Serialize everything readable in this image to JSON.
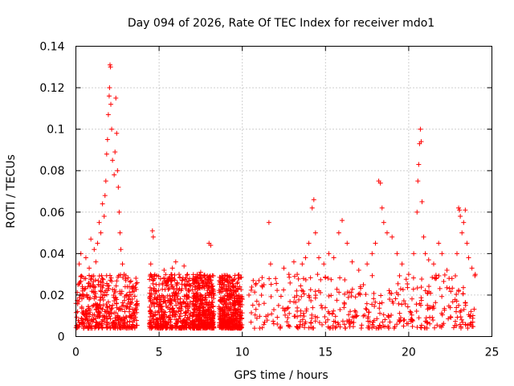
{
  "chart_data": {
    "type": "scatter",
    "title": "Day 094 of 2026, Rate Of TEC Index for receiver mdo1",
    "xlabel": "GPS time / hours",
    "ylabel": "ROTI / TECUs",
    "xlim": [
      0,
      25
    ],
    "ylim": [
      0,
      0.14
    ],
    "x_ticks": [
      0,
      5,
      10,
      15,
      20,
      25
    ],
    "x_tick_labels": [
      "0",
      "5",
      "10",
      "15",
      "20",
      "25"
    ],
    "y_ticks": [
      0,
      0.02,
      0.04,
      0.06,
      0.08,
      0.1,
      0.12,
      0.14
    ],
    "y_tick_labels": [
      "0",
      "0.02",
      "0.04",
      "0.06",
      "0.08",
      "0.1",
      "0.12",
      "0.14"
    ],
    "grid": true,
    "marker": "+",
    "marker_color": "#ff0000",
    "series": [
      {
        "name": "ROTI",
        "points": [
          [
            0.1,
            0.012
          ],
          [
            0.2,
            0.035
          ],
          [
            0.3,
            0.04
          ],
          [
            0.4,
            0.022
          ],
          [
            0.5,
            0.028
          ],
          [
            0.6,
            0.038
          ],
          [
            0.7,
            0.019
          ],
          [
            0.8,
            0.033
          ],
          [
            0.9,
            0.047
          ],
          [
            1.0,
            0.025
          ],
          [
            1.1,
            0.042
          ],
          [
            1.2,
            0.036
          ],
          [
            1.3,
            0.045
          ],
          [
            1.4,
            0.055
          ],
          [
            1.5,
            0.05
          ],
          [
            1.6,
            0.064
          ],
          [
            1.7,
            0.058
          ],
          [
            1.75,
            0.068
          ],
          [
            1.8,
            0.075
          ],
          [
            1.85,
            0.088
          ],
          [
            1.9,
            0.095
          ],
          [
            1.95,
            0.107
          ],
          [
            2.0,
            0.116
          ],
          [
            2.02,
            0.12
          ],
          [
            2.05,
            0.131
          ],
          [
            2.08,
            0.13
          ],
          [
            2.1,
            0.112
          ],
          [
            2.15,
            0.1
          ],
          [
            2.2,
            0.085
          ],
          [
            2.3,
            0.078
          ],
          [
            2.35,
            0.089
          ],
          [
            2.4,
            0.115
          ],
          [
            2.45,
            0.098
          ],
          [
            2.5,
            0.08
          ],
          [
            2.55,
            0.072
          ],
          [
            2.6,
            0.06
          ],
          [
            2.65,
            0.05
          ],
          [
            2.7,
            0.042
          ],
          [
            2.8,
            0.035
          ],
          [
            2.9,
            0.03
          ],
          [
            3.0,
            0.027
          ],
          [
            3.2,
            0.024
          ],
          [
            3.5,
            0.022
          ],
          [
            4.5,
            0.035
          ],
          [
            4.6,
            0.051
          ],
          [
            4.65,
            0.048
          ],
          [
            4.7,
            0.028
          ],
          [
            5.0,
            0.025
          ],
          [
            5.3,
            0.032
          ],
          [
            5.6,
            0.028
          ],
          [
            5.8,
            0.033
          ],
          [
            6.0,
            0.036
          ],
          [
            6.2,
            0.03
          ],
          [
            6.5,
            0.034
          ],
          [
            6.8,
            0.025
          ],
          [
            7.3,
            0.03
          ],
          [
            7.5,
            0.031
          ],
          [
            7.7,
            0.024
          ],
          [
            8.0,
            0.045
          ],
          [
            8.1,
            0.044
          ],
          [
            8.3,
            0.02
          ],
          [
            8.8,
            0.026
          ],
          [
            9.2,
            0.024
          ],
          [
            9.6,
            0.022
          ],
          [
            10.0,
            0.018
          ],
          [
            10.4,
            0.02
          ],
          [
            10.8,
            0.025
          ],
          [
            11.0,
            0.027
          ],
          [
            11.3,
            0.025
          ],
          [
            11.6,
            0.055
          ],
          [
            11.7,
            0.035
          ],
          [
            12.0,
            0.028
          ],
          [
            12.5,
            0.033
          ],
          [
            12.8,
            0.03
          ],
          [
            13.1,
            0.036
          ],
          [
            13.3,
            0.03
          ],
          [
            13.6,
            0.035
          ],
          [
            13.8,
            0.038
          ],
          [
            14.0,
            0.045
          ],
          [
            14.2,
            0.062
          ],
          [
            14.3,
            0.066
          ],
          [
            14.4,
            0.05
          ],
          [
            14.6,
            0.038
          ],
          [
            14.9,
            0.035
          ],
          [
            15.2,
            0.04
          ],
          [
            15.5,
            0.038
          ],
          [
            15.8,
            0.05
          ],
          [
            16.0,
            0.056
          ],
          [
            16.3,
            0.045
          ],
          [
            16.6,
            0.036
          ],
          [
            17.0,
            0.032
          ],
          [
            17.5,
            0.035
          ],
          [
            17.8,
            0.04
          ],
          [
            18.0,
            0.045
          ],
          [
            18.2,
            0.075
          ],
          [
            18.3,
            0.074
          ],
          [
            18.4,
            0.062
          ],
          [
            18.5,
            0.055
          ],
          [
            18.7,
            0.05
          ],
          [
            19.0,
            0.048
          ],
          [
            19.3,
            0.04
          ],
          [
            19.6,
            0.035
          ],
          [
            20.0,
            0.03
          ],
          [
            20.3,
            0.04
          ],
          [
            20.5,
            0.06
          ],
          [
            20.55,
            0.075
          ],
          [
            20.6,
            0.083
          ],
          [
            20.65,
            0.093
          ],
          [
            20.7,
            0.1
          ],
          [
            20.75,
            0.094
          ],
          [
            20.8,
            0.065
          ],
          [
            20.9,
            0.048
          ],
          [
            21.0,
            0.04
          ],
          [
            21.2,
            0.037
          ],
          [
            21.5,
            0.035
          ],
          [
            21.8,
            0.045
          ],
          [
            22.0,
            0.04
          ],
          [
            22.3,
            0.032
          ],
          [
            22.6,
            0.028
          ],
          [
            22.9,
            0.04
          ],
          [
            23.0,
            0.062
          ],
          [
            23.05,
            0.061
          ],
          [
            23.1,
            0.058
          ],
          [
            23.2,
            0.05
          ],
          [
            23.3,
            0.055
          ],
          [
            23.4,
            0.061
          ],
          [
            23.5,
            0.045
          ],
          [
            23.6,
            0.038
          ],
          [
            23.8,
            0.033
          ],
          [
            24.0,
            0.03
          ]
        ]
      }
    ]
  }
}
